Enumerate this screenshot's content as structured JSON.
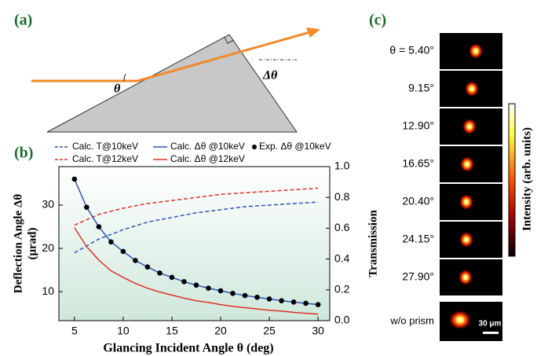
{
  "panel_a": {
    "label": "(a)",
    "theta_label": "θ",
    "delta_label": "Δθ"
  },
  "chart_data": {
    "type": "line",
    "panel_label": "(b)",
    "x_label": "Glancing Incident Angle θ (deg)",
    "y_label": [
      "Deflection Angle Δθ",
      "(μrad)"
    ],
    "y2_label": "Transmission",
    "xlim": [
      3.4,
      31.2
    ],
    "xticks": [
      5,
      10,
      15,
      20,
      25,
      30
    ],
    "ylim": [
      3.3,
      38.9
    ],
    "yticks": [
      10,
      20,
      30
    ],
    "y2lim": [
      0,
      1.0
    ],
    "y2ticks": [
      {
        "value": 0,
        "label": "0.0"
      },
      {
        "value": 0.2,
        "label": "0.2"
      },
      {
        "value": 0.4,
        "label": "0.4"
      },
      {
        "value": 0.6,
        "label": "0.6"
      },
      {
        "value": 0.8,
        "label": "0.8"
      },
      {
        "value": 1.0,
        "label": "1.0"
      }
    ],
    "series": [
      {
        "name": "Calc. T@10keV",
        "color": "#2f55b5",
        "style": "dashed",
        "axis": "y2",
        "x": [
          5,
          7.5,
          10,
          12.5,
          15,
          17.5,
          20,
          22.5,
          25,
          27.5,
          30
        ],
        "values": [
          0.44,
          0.53,
          0.59,
          0.64,
          0.67,
          0.7,
          0.72,
          0.74,
          0.75,
          0.76,
          0.77
        ]
      },
      {
        "name": "Calc. T@12keV",
        "color": "#e0302a",
        "style": "dashed",
        "axis": "y2",
        "x": [
          5,
          7.5,
          10,
          12.5,
          15,
          17.5,
          20,
          22.5,
          25,
          27.5,
          30
        ],
        "values": [
          0.62,
          0.69,
          0.73,
          0.76,
          0.78,
          0.8,
          0.82,
          0.83,
          0.84,
          0.85,
          0.86
        ]
      },
      {
        "name": "Calc. Δθ @10keV",
        "color": "#2f55b5",
        "style": "solid",
        "x": [
          5,
          6.25,
          7.5,
          8.75,
          10,
          11.25,
          12.5,
          13.75,
          15,
          16.25,
          17.5,
          18.75,
          20,
          21.25,
          22.5,
          23.75,
          25,
          26.25,
          27.5,
          28.75,
          30
        ],
        "values": [
          36,
          29.5,
          25,
          21.5,
          19.3,
          17.2,
          15.7,
          14.3,
          13.3,
          12.3,
          11.5,
          10.8,
          10.2,
          9.6,
          9.1,
          8.7,
          8.3,
          7.9,
          7.6,
          7.3,
          7.0
        ]
      },
      {
        "name": "Calc. Δθ @12keV",
        "color": "#e0302a",
        "style": "solid",
        "x": [
          5,
          6.25,
          7.5,
          8.75,
          10,
          11.25,
          12.5,
          13.75,
          15,
          16.25,
          17.5,
          18.75,
          20,
          21.25,
          22.5,
          23.75,
          25,
          26.25,
          27.5,
          28.75,
          30
        ],
        "values": [
          24.8,
          20.4,
          17.3,
          14.8,
          13.3,
          11.9,
          10.8,
          9.9,
          9.2,
          8.5,
          7.9,
          7.5,
          7.0,
          6.6,
          6.3,
          6.0,
          5.7,
          5.5,
          5.2,
          5.0,
          4.8
        ]
      },
      {
        "name": "Exp. Δθ @10keV",
        "color": "#000000",
        "style": "markers",
        "x": [
          5,
          6.25,
          7.5,
          8.75,
          10,
          11.25,
          12.5,
          13.75,
          15,
          16.25,
          17.5,
          18.75,
          20,
          21.25,
          22.5,
          23.75,
          25,
          26.25,
          27.5,
          28.75,
          30
        ],
        "values": [
          36,
          29.5,
          25,
          21.5,
          19.3,
          17.2,
          15.7,
          14.3,
          13.3,
          12.3,
          11.5,
          10.8,
          10.2,
          9.6,
          9.1,
          8.7,
          8.3,
          7.9,
          7.6,
          7.3,
          7.0
        ]
      }
    ]
  },
  "panel_c": {
    "label": "(c)",
    "rows": [
      "θ = 5.40°",
      "9.15°",
      "12.90°",
      "16.65°",
      "20.40°",
      "24.15°",
      "27.90°",
      "w/o prism"
    ],
    "colorbar_label": "Intensity (arb. units)",
    "scale_bar": "30 μm"
  }
}
